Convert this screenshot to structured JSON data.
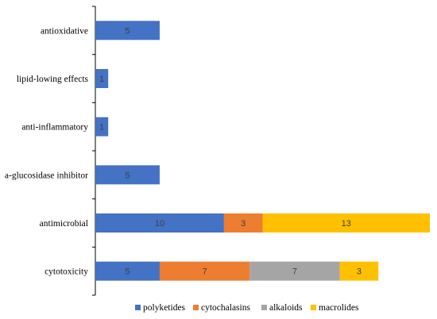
{
  "chart_data": {
    "type": "bar",
    "orientation": "horizontal",
    "stacked": true,
    "categories": [
      "antioxidative",
      "lipid-lowing effects",
      "anti-inflammatory",
      "a-glucosidase inhibitor",
      "antimicrobial",
      "cytotoxicity"
    ],
    "series": [
      {
        "name": "polyketides",
        "color": "#4472C4",
        "values": [
          5,
          1,
          1,
          5,
          10,
          5
        ]
      },
      {
        "name": "cytochalasins",
        "color": "#ED7D31",
        "values": [
          0,
          0,
          0,
          0,
          3,
          7
        ]
      },
      {
        "name": "alkaloids",
        "color": "#A5A5A5",
        "values": [
          0,
          0,
          0,
          0,
          0,
          7
        ]
      },
      {
        "name": "macrolides",
        "color": "#FFC000",
        "values": [
          0,
          0,
          0,
          0,
          13,
          3
        ]
      }
    ],
    "xlim": [
      0,
      26
    ],
    "data_labels": true,
    "grid": false,
    "legend": "bottom",
    "title": "",
    "xlabel": "",
    "ylabel": ""
  }
}
